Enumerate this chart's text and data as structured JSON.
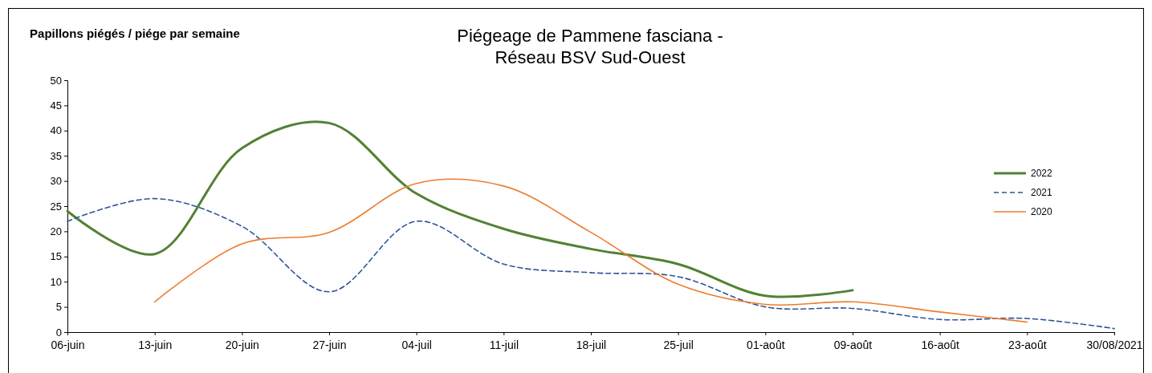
{
  "chart_data": {
    "type": "line",
    "title": "Piégeage de Pammene fasciana - Réseau BSV Sud-Ouest",
    "ylabel": "Papillons piégés / piége par semaine",
    "categories": [
      "06-juin",
      "13-juin",
      "20-juin",
      "27-juin",
      "04-juil",
      "11-juil",
      "18-juil",
      "25-juil",
      "01-août",
      "09-août",
      "16-août",
      "23-août",
      "30/08/2021"
    ],
    "series": [
      {
        "name": "2022",
        "color": "#538135",
        "line_style": "solid",
        "values": [
          24,
          15.5,
          36.5,
          41.5,
          27.5,
          20.5,
          16.5,
          13.5,
          7.2,
          8.3,
          null,
          null,
          null
        ]
      },
      {
        "name": "2021",
        "color": "#2f5597",
        "line_style": "dashed",
        "values": [
          22,
          26.5,
          21,
          8,
          22,
          13.5,
          11.8,
          11,
          5,
          4.7,
          2.5,
          2.7,
          0.7
        ]
      },
      {
        "name": "2020",
        "color": "#ed7d31",
        "line_style": "solid",
        "values": [
          null,
          6,
          17.5,
          19.8,
          29.5,
          29,
          19.8,
          9.5,
          5.5,
          6,
          4,
          2,
          null
        ]
      }
    ],
    "ylim": [
      0,
      50
    ],
    "yticks": [
      0,
      5,
      10,
      15,
      20,
      25,
      30,
      35,
      40,
      45,
      50
    ],
    "grid": false,
    "legend": "right",
    "marker": "none"
  }
}
